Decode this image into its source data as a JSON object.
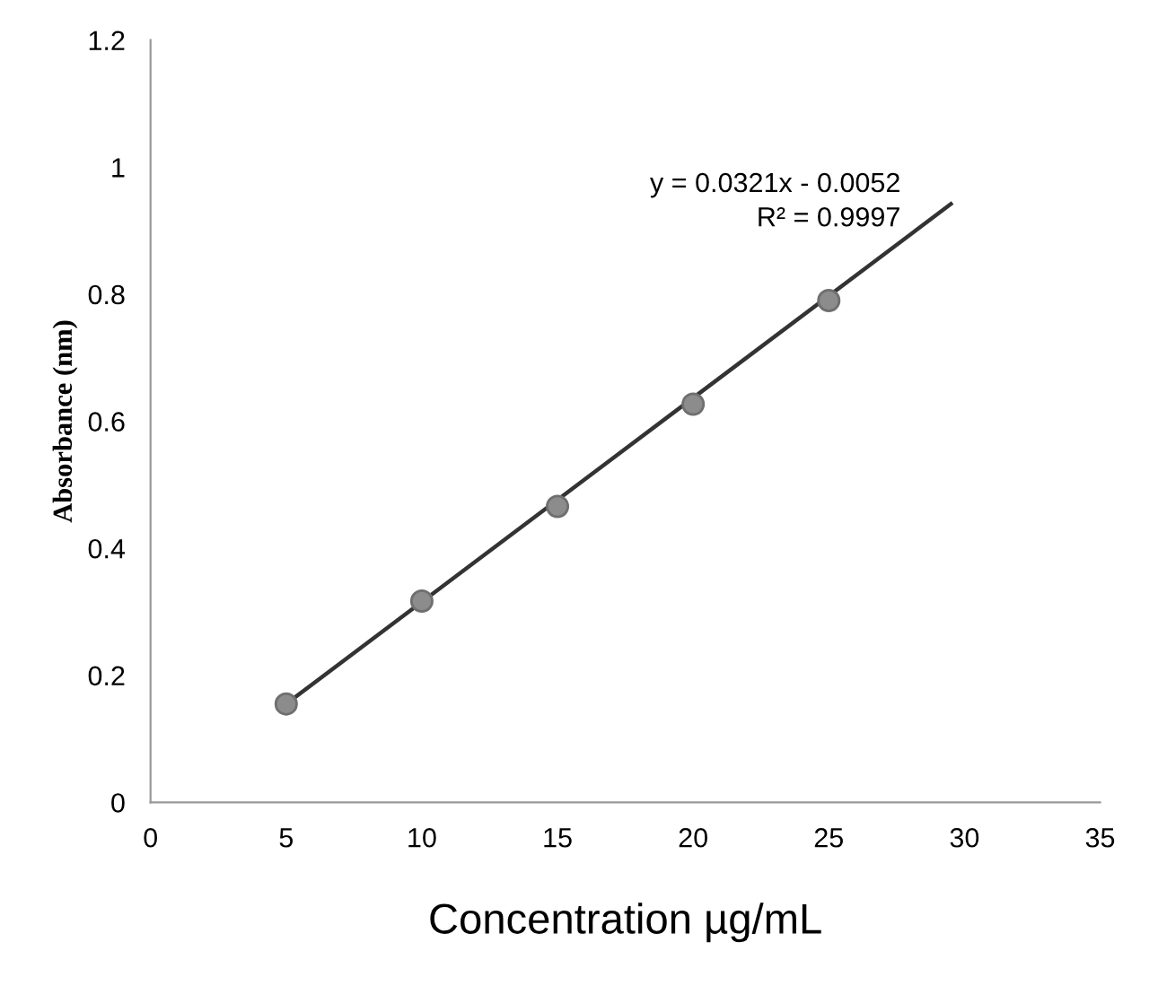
{
  "chart_data": {
    "type": "scatter",
    "xlabel": "Concentration µg/mL",
    "ylabel": "Absorbance (nm)",
    "xlim": [
      0,
      35
    ],
    "xticks": [
      0,
      5,
      10,
      15,
      20,
      25,
      30,
      35
    ],
    "ylim": [
      0,
      1.2
    ],
    "yticks": [
      0,
      0.2,
      0.4,
      0.6,
      0.8,
      1,
      1.2
    ],
    "grid": false,
    "series": [
      {
        "marker": "circle",
        "color": "#8c8c8c",
        "x": [
          5,
          10,
          15,
          20,
          25
        ],
        "values": [
          0.155,
          0.317,
          0.466,
          0.627,
          0.79
        ]
      },
      {
        "type": "line",
        "color": "#333333",
        "x": [
          5,
          29.5
        ],
        "values": [
          0.155,
          0.942
        ]
      }
    ],
    "annotations": [
      "y = 0.0321x - 0.0052",
      "R² = 0.9997"
    ]
  }
}
